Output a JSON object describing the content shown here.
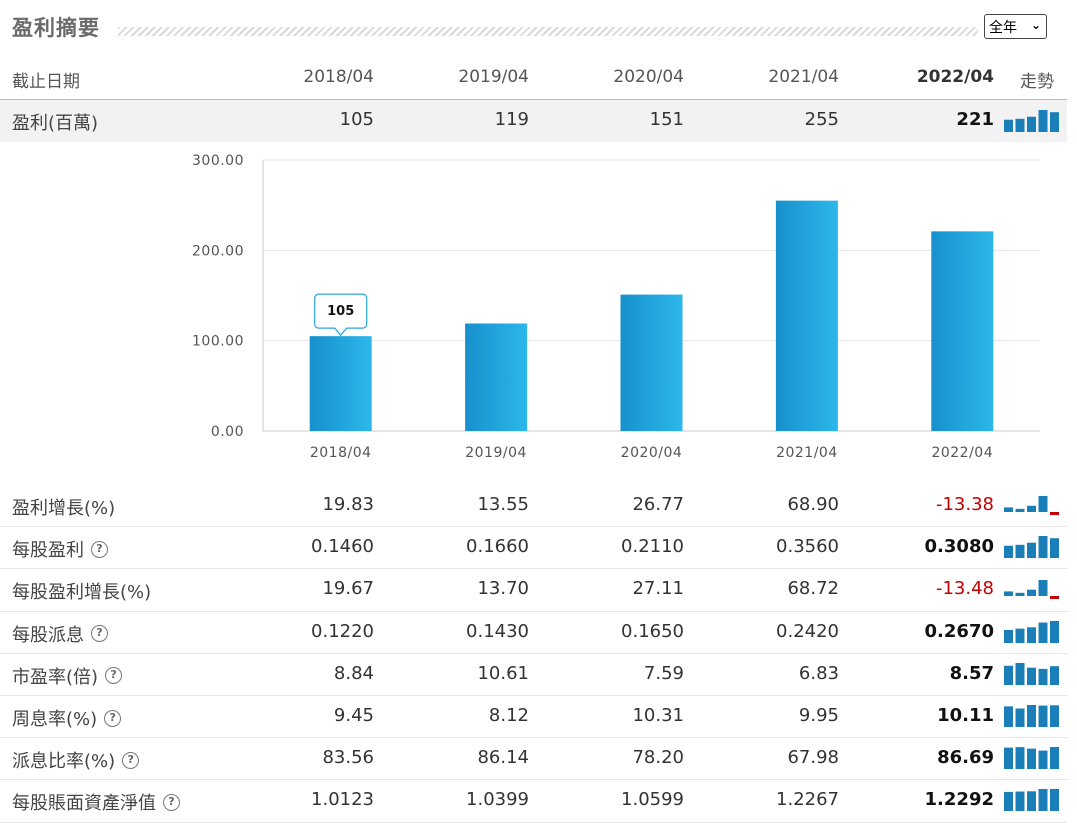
{
  "header": {
    "title": "盈利摘要",
    "period_select": "全年"
  },
  "columns": {
    "label": "截止日期",
    "dates": [
      "2018/04",
      "2019/04",
      "2020/04",
      "2021/04",
      "2022/04"
    ],
    "trend": "走勢"
  },
  "profit_row": {
    "label": "盈利(百萬)",
    "values": [
      "105",
      "119",
      "151",
      "255",
      "221"
    ],
    "spark": [
      105,
      119,
      151,
      255,
      221
    ]
  },
  "chart_data": {
    "type": "bar",
    "categories": [
      "2018/04",
      "2019/04",
      "2020/04",
      "2021/04",
      "2022/04"
    ],
    "values": [
      105,
      119,
      151,
      255,
      221
    ],
    "ylim": [
      0,
      300
    ],
    "yticks": [
      "0.00",
      "100.00",
      "200.00",
      "300.00"
    ],
    "grid": true,
    "tooltip": {
      "category": "2018/04",
      "text": "105"
    },
    "bar_color": "#1a9ad6"
  },
  "rows": [
    {
      "label": "盈利增長(%)",
      "help": false,
      "values": [
        "19.83",
        "13.55",
        "26.77",
        "68.90",
        "-13.38"
      ],
      "last_negative": true,
      "spark": [
        19.83,
        13.55,
        26.77,
        68.9,
        -13.38
      ]
    },
    {
      "label": "每股盈利",
      "help": true,
      "values": [
        "0.1460",
        "0.1660",
        "0.2110",
        "0.3560",
        "0.3080"
      ],
      "last_negative": false,
      "spark": [
        0.146,
        0.166,
        0.211,
        0.356,
        0.308
      ]
    },
    {
      "label": "每股盈利增長(%)",
      "help": false,
      "values": [
        "19.67",
        "13.70",
        "27.11",
        "68.72",
        "-13.48"
      ],
      "last_negative": true,
      "spark": [
        19.67,
        13.7,
        27.11,
        68.72,
        -13.48
      ]
    },
    {
      "label": "每股派息",
      "help": true,
      "values": [
        "0.1220",
        "0.1430",
        "0.1650",
        "0.2420",
        "0.2670"
      ],
      "last_negative": false,
      "spark": [
        0.122,
        0.143,
        0.165,
        0.242,
        0.267
      ]
    },
    {
      "label": "市盈率(倍)",
      "help": true,
      "values": [
        "8.84",
        "10.61",
        "7.59",
        "6.83",
        "8.57"
      ],
      "last_negative": false,
      "spark": [
        8.84,
        10.61,
        7.59,
        6.83,
        8.57
      ]
    },
    {
      "label": "周息率(%)",
      "help": true,
      "values": [
        "9.45",
        "8.12",
        "10.31",
        "9.95",
        "10.11"
      ],
      "last_negative": false,
      "spark": [
        9.45,
        8.12,
        10.31,
        9.95,
        10.11
      ]
    },
    {
      "label": "派息比率(%)",
      "help": true,
      "values": [
        "83.56",
        "86.14",
        "78.20",
        "67.98",
        "86.69"
      ],
      "last_negative": false,
      "spark": [
        83.56,
        86.14,
        78.2,
        67.98,
        86.69
      ]
    },
    {
      "label": "每股賬面資產淨值",
      "help": true,
      "values": [
        "1.0123",
        "1.0399",
        "1.0599",
        "1.2267",
        "1.2292"
      ],
      "last_negative": false,
      "spark": [
        1.0123,
        1.0399,
        1.0599,
        1.2267,
        1.2292
      ]
    }
  ],
  "help_glyph": "?",
  "colors": {
    "spark": "#1a7fb8",
    "negative": "#c40000"
  }
}
